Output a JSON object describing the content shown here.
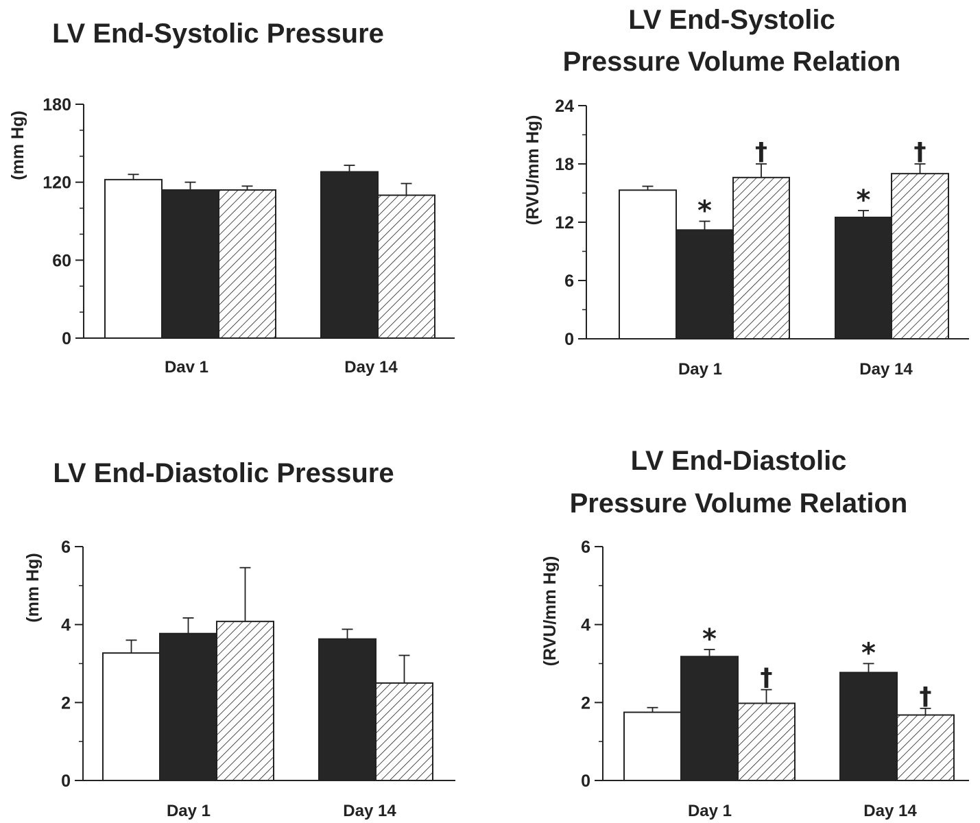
{
  "chart_data": [
    {
      "type": "bar",
      "title": "LV End-Systolic Pressure",
      "ylabel": "(mm Hg)",
      "ylim": [
        0,
        180
      ],
      "yticks": [
        "0",
        "60",
        "120",
        "180"
      ],
      "categories": [
        "Dav 1",
        "Day 14"
      ],
      "groups": [
        {
          "category": "Dav 1",
          "bars": [
            {
              "fill": "white",
              "value": 122,
              "error": 4,
              "mark": ""
            },
            {
              "fill": "black",
              "value": 114,
              "error": 6,
              "mark": ""
            },
            {
              "fill": "hatch",
              "value": 114,
              "error": 3,
              "mark": ""
            }
          ]
        },
        {
          "category": "Day 14",
          "bars": [
            {
              "fill": "black",
              "value": 128,
              "error": 5,
              "mark": ""
            },
            {
              "fill": "hatch",
              "value": 110,
              "error": 9,
              "mark": ""
            }
          ]
        }
      ]
    },
    {
      "type": "bar",
      "title": "LV End-Systolic Pressure Volume Relation",
      "title_lines": [
        "LV End-Systolic",
        "Pressure Volume Relation"
      ],
      "ylabel": "(RVU/mm Hg)",
      "ylim": [
        0,
        24
      ],
      "yticks": [
        "0",
        "6",
        "12",
        "18",
        "24"
      ],
      "categories": [
        "Day 1",
        "Day 14"
      ],
      "groups": [
        {
          "category": "Day 1",
          "bars": [
            {
              "fill": "white",
              "value": 15.3,
              "error": 0.4,
              "mark": ""
            },
            {
              "fill": "black",
              "value": 11.2,
              "error": 0.9,
              "mark": "*"
            },
            {
              "fill": "hatch",
              "value": 16.6,
              "error": 1.4,
              "mark": "†"
            }
          ]
        },
        {
          "category": "Day 14",
          "bars": [
            {
              "fill": "black",
              "value": 12.5,
              "error": 0.7,
              "mark": "*"
            },
            {
              "fill": "hatch",
              "value": 17.0,
              "error": 1.0,
              "mark": "†"
            }
          ]
        }
      ]
    },
    {
      "type": "bar",
      "title": "LV End-Diastolic Pressure",
      "ylabel": "(mm Hg)",
      "ylim": [
        0,
        6
      ],
      "yticks": [
        "0",
        "2",
        "4",
        "6"
      ],
      "categories": [
        "Day 1",
        "Day 14"
      ],
      "groups": [
        {
          "category": "Day 1",
          "bars": [
            {
              "fill": "white",
              "value": 3.27,
              "error": 0.33,
              "mark": ""
            },
            {
              "fill": "black",
              "value": 3.77,
              "error": 0.4,
              "mark": ""
            },
            {
              "fill": "hatch",
              "value": 4.08,
              "error": 1.38,
              "mark": ""
            }
          ]
        },
        {
          "category": "Day 14",
          "bars": [
            {
              "fill": "black",
              "value": 3.63,
              "error": 0.25,
              "mark": ""
            },
            {
              "fill": "hatch",
              "value": 2.5,
              "error": 0.71,
              "mark": ""
            }
          ]
        }
      ]
    },
    {
      "type": "bar",
      "title": "LV End-Diastolic Pressure Volume Relation",
      "title_lines": [
        "LV End-Diastolic",
        "Pressure Volume Relation"
      ],
      "ylabel": "(RVU/mm Hg)",
      "ylim": [
        0,
        6
      ],
      "yticks": [
        "0",
        "2",
        "4",
        "6"
      ],
      "categories": [
        "Day 1",
        "Day 14"
      ],
      "groups": [
        {
          "category": "Day 1",
          "bars": [
            {
              "fill": "white",
              "value": 1.75,
              "error": 0.12,
              "mark": ""
            },
            {
              "fill": "black",
              "value": 3.18,
              "error": 0.18,
              "mark": "*"
            },
            {
              "fill": "hatch",
              "value": 1.98,
              "error": 0.35,
              "mark": "†"
            }
          ]
        },
        {
          "category": "Day 14",
          "bars": [
            {
              "fill": "black",
              "value": 2.77,
              "error": 0.23,
              "mark": "*"
            },
            {
              "fill": "hatch",
              "value": 1.68,
              "error": 0.17,
              "mark": "†"
            }
          ]
        }
      ]
    }
  ]
}
